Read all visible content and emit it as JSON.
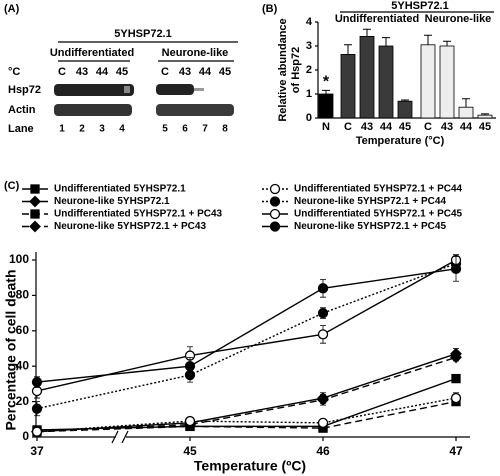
{
  "panel_a": {
    "panel_label": "(A)",
    "header": "5YHSP72.1",
    "groups": [
      "Undifferentiated",
      "Neurone-like"
    ],
    "temp_label": "°C",
    "temps": [
      "C",
      "43",
      "44",
      "45",
      "C",
      "43",
      "44",
      "45"
    ],
    "rows": [
      "Hsp72",
      "Actin",
      "Lane"
    ],
    "lanes": [
      "1",
      "2",
      "3",
      "4",
      "5",
      "6",
      "7",
      "8"
    ]
  },
  "chart_data": [
    {
      "type": "bar",
      "panel_label": "(B)",
      "header": "5YHSP72.1",
      "group_labels": [
        "Undifferentiated",
        "Neurone-like"
      ],
      "ylabel": [
        "Relative abundance",
        "of Hsp72"
      ],
      "xlabel": "Temperature (°C)",
      "annotation": "*",
      "categories": [
        "N",
        "C",
        "43",
        "44",
        "45",
        "C",
        "43",
        "44",
        "45"
      ],
      "values": [
        1.0,
        2.65,
        3.4,
        3.0,
        0.7,
        3.05,
        3.0,
        0.45,
        0.12
      ],
      "errors": [
        0.15,
        0.4,
        0.3,
        0.35,
        0.05,
        0.4,
        0.2,
        0.35,
        0.05
      ],
      "colors": [
        "#000000",
        "#3a3a3a",
        "#3a3a3a",
        "#3a3a3a",
        "#3a3a3a",
        "#eeeeee",
        "#eeeeee",
        "#eeeeee",
        "#eeeeee"
      ],
      "ylim": [
        0,
        4
      ],
      "yticks": [
        0,
        1,
        2,
        3,
        4
      ]
    },
    {
      "type": "line",
      "panel_label": "(C)",
      "ylabel": "Percentage of cell death",
      "xlabel": "Temperature (ºC)",
      "categories": [
        "37",
        "45",
        "46",
        "47"
      ],
      "ylim": [
        0,
        100
      ],
      "yticks": [
        0,
        20,
        40,
        60,
        80,
        100
      ],
      "series": [
        {
          "name": "Undifferentiated 5YHSP72.1",
          "color": "#000000",
          "dash": "solid",
          "marker": "square",
          "filled": true,
          "values": [
            4,
            6,
            6,
            33
          ],
          "errors": [
            1,
            2,
            2,
            2
          ]
        },
        {
          "name": "Neurone-like 5YHSP72.1",
          "color": "#000000",
          "dash": "solid",
          "marker": "diamond",
          "filled": true,
          "values": [
            3,
            8,
            22,
            47
          ],
          "errors": [
            1,
            2,
            3,
            3
          ]
        },
        {
          "name": "Undifferentiated 5YHSP72.1 + PC43",
          "color": "#000000",
          "dash": "dashed",
          "marker": "square",
          "filled": true,
          "values": [
            3,
            6,
            5,
            20
          ],
          "errors": [
            1,
            1,
            1,
            1
          ]
        },
        {
          "name": "Neurone-like 5YHSP72.1 + PC43",
          "color": "#000000",
          "dash": "dashed",
          "marker": "diamond",
          "filled": true,
          "values": [
            3,
            7,
            21,
            45
          ],
          "errors": [
            1,
            2,
            3,
            2
          ]
        },
        {
          "name": "Undifferentiated 5YHSP72.1 + PC44",
          "color": "#000000",
          "dash": "dotted",
          "marker": "circle",
          "filled": false,
          "values": [
            3,
            9,
            8,
            22
          ],
          "errors": [
            1,
            2,
            2,
            3
          ]
        },
        {
          "name": "Neurone-like 5YHSP72.1 + PC44",
          "color": "#000000",
          "dash": "dotted",
          "marker": "circle",
          "filled": true,
          "values": [
            16,
            35,
            70,
            98
          ],
          "errors": [
            4,
            4,
            3,
            5
          ]
        },
        {
          "name": "Undifferentiated 5YHSP72.1 + PC45",
          "color": "#000000",
          "dash": "solid",
          "marker": "circle",
          "filled": false,
          "values": [
            26,
            46,
            58,
            100
          ],
          "errors": [
            4,
            5,
            5,
            2
          ]
        },
        {
          "name": "Neurone-like 5YHSP72.1 + PC45",
          "color": "#000000",
          "dash": "solid",
          "marker": "circle",
          "filled": true,
          "values": [
            31,
            40,
            84,
            95
          ],
          "errors": [
            3,
            5,
            5,
            7
          ]
        }
      ]
    }
  ]
}
